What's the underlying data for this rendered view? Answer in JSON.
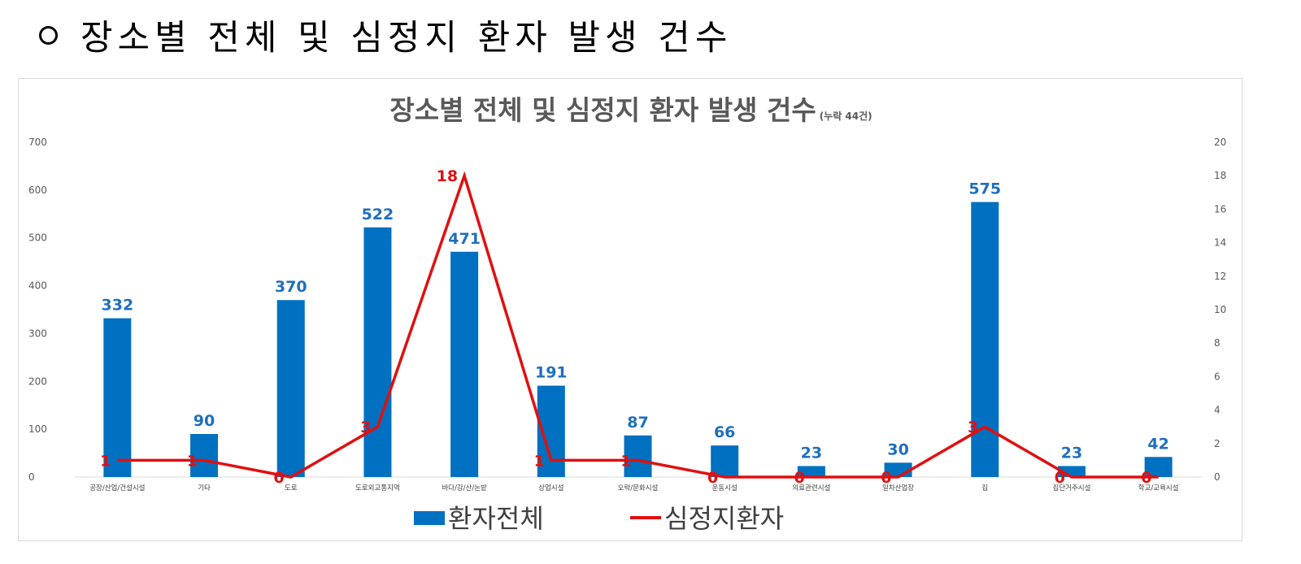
{
  "header": {
    "bullet": "O",
    "text": "장소별 전체 및 심정지 환자 발생 건수"
  },
  "chart_data": {
    "type": "bar",
    "title": "장소별 전체 및 심정지 환자 발생 건수",
    "subtitle": "(누락 44건)",
    "categories": [
      "공장/산업/건설시설",
      "기타",
      "도로",
      "도로외교통지역",
      "바다/강/산/논밭",
      "상업시설",
      "오락/문화시설",
      "운동시설",
      "의료관련시설",
      "일차산업장",
      "집",
      "집단거주시설",
      "학교/교육시설"
    ],
    "series": [
      {
        "name": "환자전체",
        "type": "bar",
        "axis": "left",
        "color": "#0070c0",
        "values": [
          332,
          90,
          370,
          522,
          471,
          191,
          87,
          66,
          23,
          30,
          575,
          23,
          42
        ]
      },
      {
        "name": "심정지환자",
        "type": "line",
        "axis": "right",
        "color": "#e01010",
        "values": [
          1,
          1,
          0,
          3,
          18,
          1,
          1,
          0,
          0,
          0,
          3,
          0,
          0
        ]
      }
    ],
    "y_left": {
      "min": 0,
      "max": 700,
      "ticks": [
        "0",
        "100",
        "200",
        "300",
        "400",
        "500",
        "600",
        "700"
      ]
    },
    "y_right": {
      "min": 0,
      "max": 20,
      "ticks": [
        "0",
        "2",
        "4",
        "6",
        "8",
        "10",
        "12",
        "14",
        "16",
        "18",
        "20"
      ]
    },
    "grid": false,
    "legend_position": "bottom"
  }
}
